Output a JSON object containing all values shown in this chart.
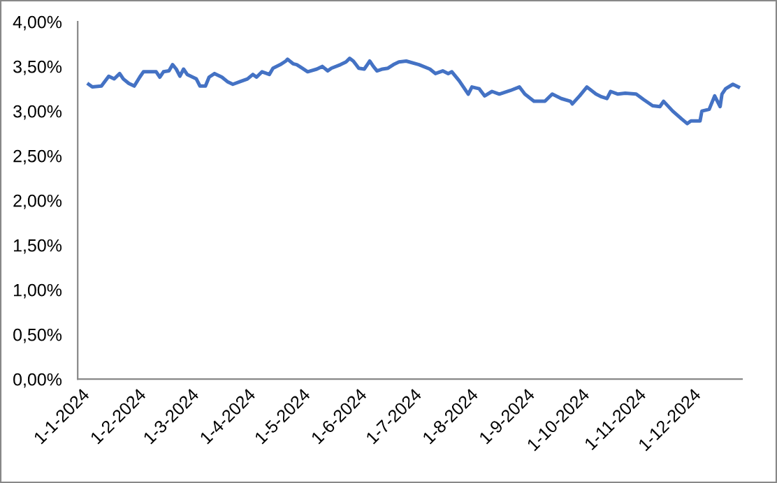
{
  "chart_data": {
    "type": "line",
    "x": [
      "2024-01-05",
      "2024-01-07",
      "2024-01-12",
      "2024-01-16",
      "2024-01-19",
      "2024-01-22",
      "2024-01-24",
      "2024-01-27",
      "2024-01-30",
      "2024-02-02",
      "2024-02-04",
      "2024-02-08",
      "2024-02-11",
      "2024-02-13",
      "2024-02-15",
      "2024-02-18",
      "2024-02-20",
      "2024-02-22",
      "2024-02-24",
      "2024-02-26",
      "2024-02-28",
      "2024-03-01",
      "2024-03-04",
      "2024-03-06",
      "2024-03-09",
      "2024-03-11",
      "2024-03-14",
      "2024-03-18",
      "2024-03-21",
      "2024-03-24",
      "2024-03-28",
      "2024-04-01",
      "2024-04-04",
      "2024-04-06",
      "2024-04-09",
      "2024-04-13",
      "2024-04-15",
      "2024-04-19",
      "2024-04-22",
      "2024-04-23",
      "2024-04-26",
      "2024-04-28",
      "2024-05-01",
      "2024-05-04",
      "2024-05-09",
      "2024-05-12",
      "2024-05-15",
      "2024-05-17",
      "2024-05-22",
      "2024-05-25",
      "2024-05-27",
      "2024-05-29",
      "2024-06-01",
      "2024-06-04",
      "2024-06-06",
      "2024-06-07",
      "2024-06-09",
      "2024-06-11",
      "2024-06-14",
      "2024-06-17",
      "2024-06-20",
      "2024-06-23",
      "2024-06-27",
      "2024-07-04",
      "2024-07-10",
      "2024-07-13",
      "2024-07-17",
      "2024-07-20",
      "2024-07-22",
      "2024-07-26",
      "2024-07-31",
      "2024-08-02",
      "2024-08-06",
      "2024-08-09",
      "2024-08-13",
      "2024-08-17",
      "2024-08-23",
      "2024-08-28",
      "2024-08-31",
      "2024-09-05",
      "2024-09-11",
      "2024-09-15",
      "2024-09-20",
      "2024-09-25",
      "2024-09-26",
      "2024-09-30",
      "2024-10-04",
      "2024-10-09",
      "2024-10-12",
      "2024-10-15",
      "2024-10-17",
      "2024-10-21",
      "2024-10-25",
      "2024-10-31",
      "2024-11-04",
      "2024-11-09",
      "2024-11-13",
      "2024-11-15",
      "2024-11-20",
      "2024-11-25",
      "2024-11-28",
      "2024-11-30",
      "2024-12-05",
      "2024-12-06",
      "2024-12-10",
      "2024-12-13",
      "2024-12-16",
      "2024-12-17",
      "2024-12-19",
      "2024-12-23",
      "2024-12-26"
    ],
    "series": [
      {
        "color": "#4472c4",
        "values": [
          3.3,
          3.27,
          3.28,
          3.39,
          3.36,
          3.42,
          3.36,
          3.31,
          3.28,
          3.38,
          3.44,
          3.44,
          3.44,
          3.38,
          3.44,
          3.45,
          3.52,
          3.47,
          3.39,
          3.47,
          3.41,
          3.39,
          3.36,
          3.28,
          3.28,
          3.38,
          3.42,
          3.38,
          3.33,
          3.3,
          3.33,
          3.36,
          3.41,
          3.38,
          3.44,
          3.41,
          3.48,
          3.52,
          3.56,
          3.58,
          3.53,
          3.52,
          3.48,
          3.44,
          3.47,
          3.5,
          3.45,
          3.48,
          3.52,
          3.55,
          3.59,
          3.56,
          3.48,
          3.47,
          3.53,
          3.56,
          3.5,
          3.45,
          3.47,
          3.48,
          3.52,
          3.55,
          3.56,
          3.52,
          3.47,
          3.42,
          3.45,
          3.42,
          3.44,
          3.34,
          3.19,
          3.27,
          3.25,
          3.17,
          3.22,
          3.19,
          3.23,
          3.27,
          3.19,
          3.11,
          3.11,
          3.19,
          3.14,
          3.11,
          3.08,
          3.17,
          3.27,
          3.19,
          3.16,
          3.14,
          3.22,
          3.19,
          3.2,
          3.19,
          3.13,
          3.06,
          3.05,
          3.11,
          3.0,
          2.91,
          2.86,
          2.89,
          2.89,
          3.0,
          3.02,
          3.17,
          3.05,
          3.19,
          3.25,
          3.3,
          3.27
        ]
      }
    ],
    "xlim": [
      "2023-12-30",
      "2024-12-28"
    ],
    "xticks": [
      {
        "value": "2024-01-01",
        "label": "1-1-2024"
      },
      {
        "value": "2024-02-01",
        "label": "1-2-2024"
      },
      {
        "value": "2024-03-01",
        "label": "1-3-2024"
      },
      {
        "value": "2024-04-01",
        "label": "1-4-2024"
      },
      {
        "value": "2024-05-01",
        "label": "1-5-2024"
      },
      {
        "value": "2024-06-01",
        "label": "1-6-2024"
      },
      {
        "value": "2024-07-01",
        "label": "1-7-2024"
      },
      {
        "value": "2024-08-01",
        "label": "1-8-2024"
      },
      {
        "value": "2024-09-01",
        "label": "1-9-2024"
      },
      {
        "value": "2024-10-01",
        "label": "1-10-2024"
      },
      {
        "value": "2024-11-01",
        "label": "1-11-2024"
      },
      {
        "value": "2024-12-01",
        "label": "1-12-2024"
      }
    ],
    "ylim": [
      0,
      4
    ],
    "yticks": [
      {
        "value": 0,
        "label": "0,00%"
      },
      {
        "value": 0.5,
        "label": "0,50%"
      },
      {
        "value": 1,
        "label": "1,00%"
      },
      {
        "value": 1.5,
        "label": "1,50%"
      },
      {
        "value": 2,
        "label": "2,00%"
      },
      {
        "value": 2.5,
        "label": "2,50%"
      },
      {
        "value": 3,
        "label": "3,00%"
      },
      {
        "value": 3.5,
        "label": "3,50%"
      },
      {
        "value": 4,
        "label": "4,00%"
      }
    ],
    "grid": false,
    "marker": "none",
    "line_style": "solid"
  }
}
